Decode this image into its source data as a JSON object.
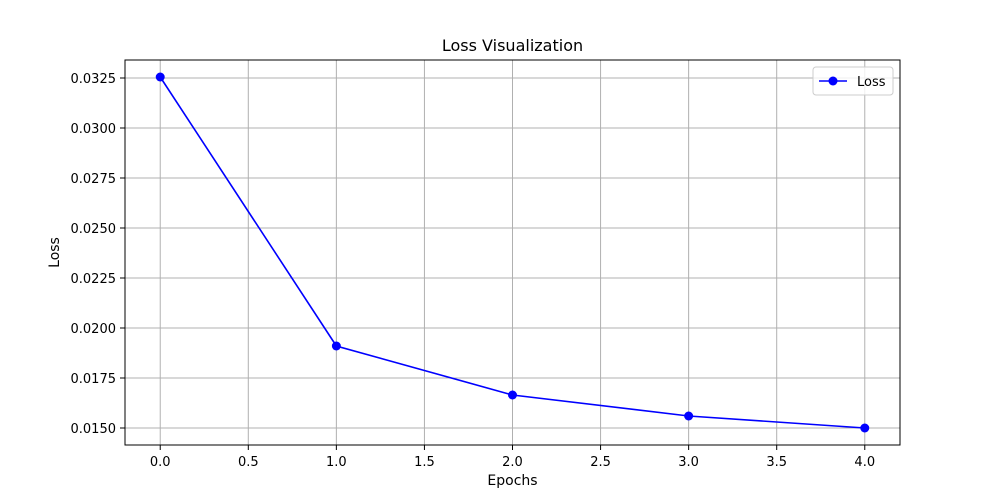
{
  "chart_data": {
    "type": "line",
    "title": "Loss Visualization",
    "xlabel": "Epochs",
    "ylabel": "Loss",
    "x": [
      0,
      1,
      2,
      3,
      4
    ],
    "series": [
      {
        "name": "Loss",
        "values": [
          0.03255,
          0.0191,
          0.01665,
          0.0156,
          0.015
        ],
        "color": "#0000ff",
        "marker": "circle"
      }
    ],
    "xlim": [
      -0.2,
      4.2
    ],
    "ylim": [
      0.01415,
      0.0334
    ],
    "xticks": [
      0.0,
      0.5,
      1.0,
      1.5,
      2.0,
      2.5,
      3.0,
      3.5,
      4.0
    ],
    "xtick_labels": [
      "0.0",
      "0.5",
      "1.0",
      "1.5",
      "2.0",
      "2.5",
      "3.0",
      "3.5",
      "4.0"
    ],
    "yticks": [
      0.015,
      0.0175,
      0.02,
      0.0225,
      0.025,
      0.0275,
      0.03,
      0.0325
    ],
    "ytick_labels": [
      "0.0150",
      "0.0175",
      "0.0200",
      "0.0225",
      "0.0250",
      "0.0275",
      "0.0300",
      "0.0325"
    ],
    "grid": true,
    "legend_position": "top-right",
    "grid_color": "#b0b0b0"
  }
}
